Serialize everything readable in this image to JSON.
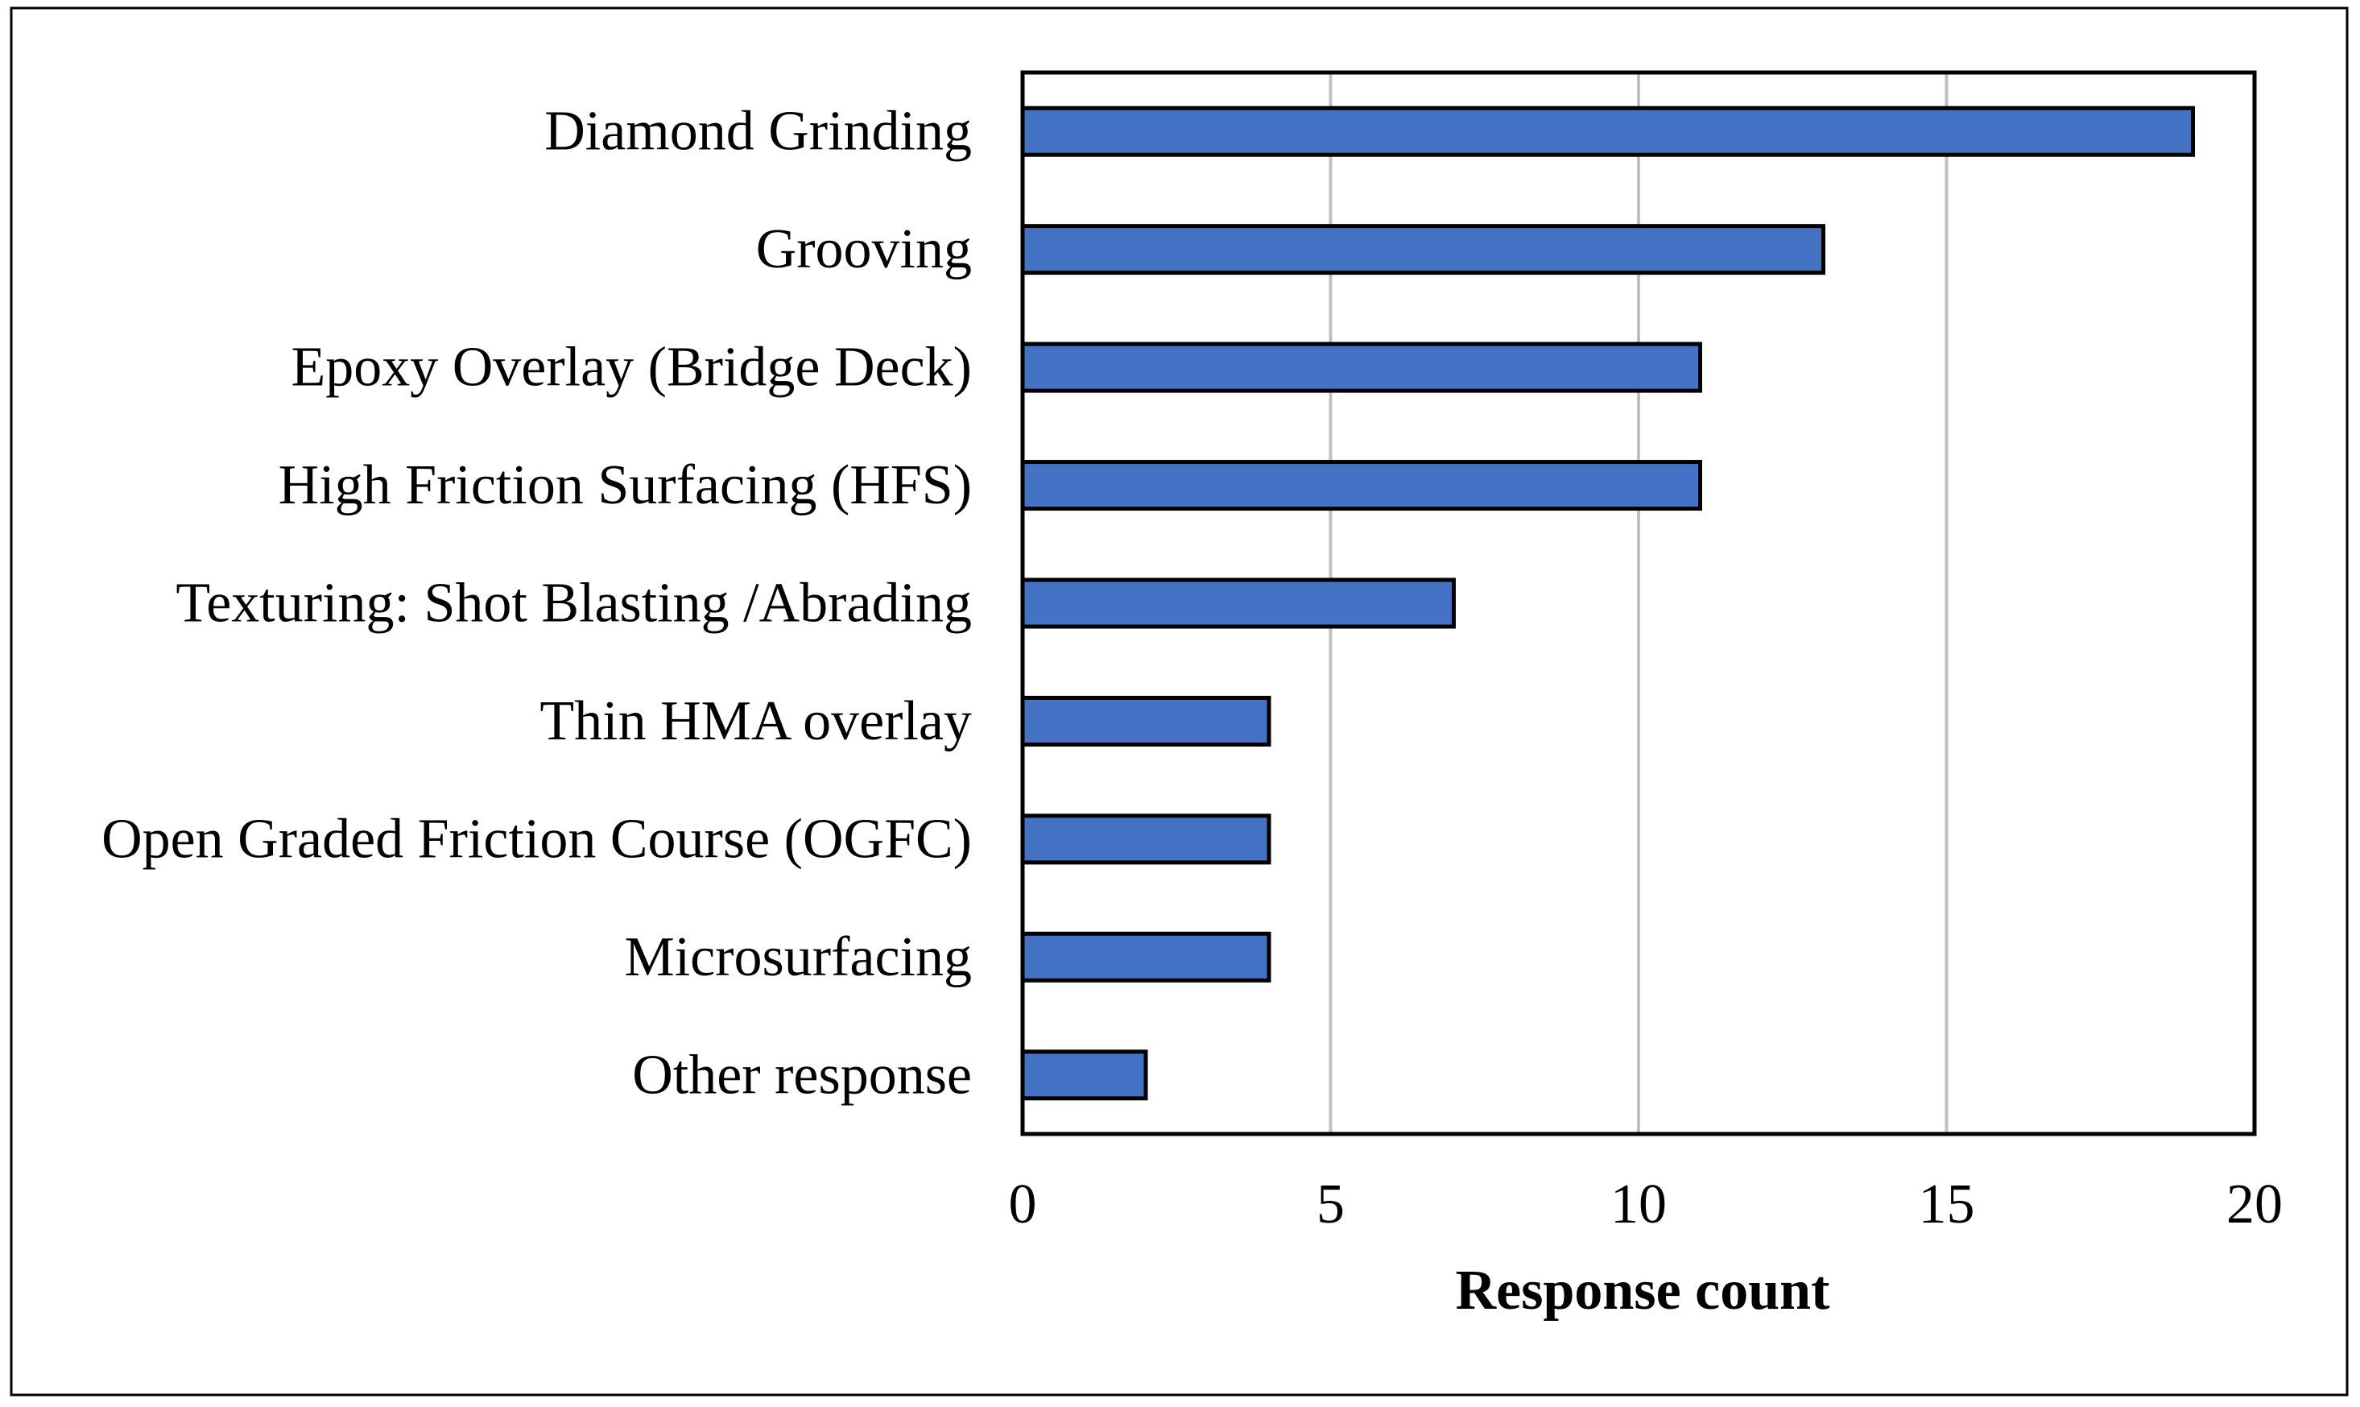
{
  "chart_data": {
    "type": "bar",
    "orientation": "horizontal",
    "title": "",
    "xlabel": "Response count",
    "ylabel": "",
    "xlim": [
      0,
      20
    ],
    "xticks": [
      0,
      5,
      10,
      15,
      20
    ],
    "grid": "vertical",
    "categories": [
      "Diamond Grinding",
      "Grooving",
      "Epoxy Overlay (Bridge Deck)",
      "High Friction Surfacing (HFS)",
      "Texturing: Shot Blasting /Abrading",
      "Thin HMA overlay",
      "Open Graded Friction Course (OGFC)",
      "Microsurfacing",
      "Other response"
    ],
    "values": [
      19,
      13,
      11,
      11,
      7,
      4,
      4,
      4,
      2
    ],
    "bar_color": "#4472c4",
    "grid_color": "#bfbfbf"
  }
}
